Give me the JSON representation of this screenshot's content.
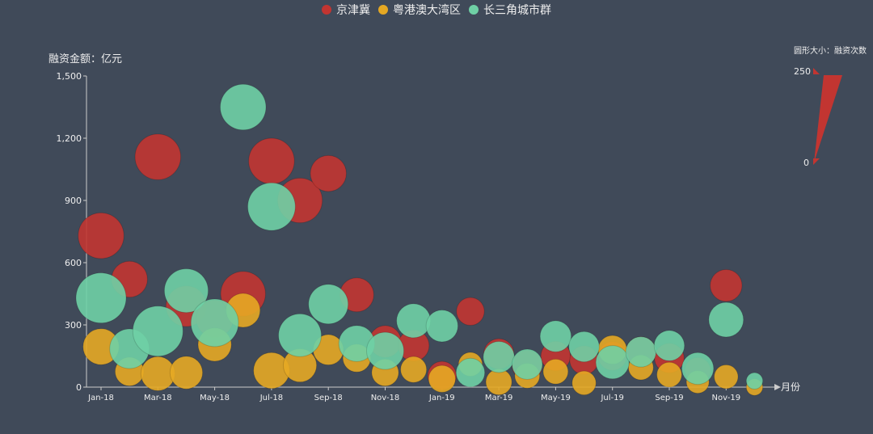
{
  "chart_data": {
    "type": "scatter",
    "title": "",
    "ylabel": "融资金额：亿元",
    "xlabel": "月份",
    "ylim": [
      0,
      1500
    ],
    "yticks": [
      "0",
      "300",
      "600",
      "900",
      "1,200",
      "1,500"
    ],
    "xticks": [
      "Jan-18",
      "Mar-18",
      "May-18",
      "Jul-18",
      "Sep-18",
      "Nov-18",
      "Jan-19",
      "Mar-19",
      "May-19",
      "Jul-19",
      "Sep-19",
      "Nov-19"
    ],
    "months": [
      "Jan-18",
      "Feb-18",
      "Mar-18",
      "Apr-18",
      "May-18",
      "Jun-18",
      "Jul-18",
      "Aug-18",
      "Sep-18",
      "Oct-18",
      "Nov-18",
      "Dec-18",
      "Jan-19",
      "Feb-19",
      "Mar-19",
      "Apr-19",
      "May-19",
      "Jun-19",
      "Jul-19",
      "Aug-19",
      "Sep-19",
      "Oct-19",
      "Nov-19",
      "Dec-19"
    ],
    "legend_position": "top-center",
    "size_legend": {
      "title": "圆形大小：融资次数",
      "max_label": "250",
      "min_label": "0",
      "color": "#c23531"
    },
    "series": [
      {
        "name": "京津冀",
        "color": "#c23531",
        "y": [
          730,
          520,
          1110,
          390,
          330,
          450,
          1090,
          900,
          1030,
          445,
          220,
          200,
          55,
          365,
          160,
          105,
          150,
          130,
          150,
          170,
          140,
          80,
          490,
          null
        ],
        "size": [
          200,
          110,
          200,
          150,
          120,
          190,
          200,
          190,
          110,
          95,
          80,
          75,
          60,
          55,
          70,
          70,
          65,
          60,
          60,
          70,
          65,
          45,
          80,
          null
        ]
      },
      {
        "name": "粤港澳大湾区",
        "color": "#e5a823",
        "y": [
          195,
          75,
          65,
          70,
          205,
          370,
          80,
          105,
          180,
          140,
          70,
          85,
          40,
          110,
          25,
          55,
          75,
          20,
          180,
          95,
          60,
          25,
          50,
          0
        ],
        "size": [
          110,
          60,
          95,
          85,
          90,
          95,
          110,
          90,
          70,
          55,
          50,
          45,
          50,
          35,
          45,
          40,
          40,
          35,
          60,
          40,
          40,
          30,
          35,
          10
        ]
      },
      {
        "name": "长三角城市群",
        "color": "#6fd0a5",
        "y": [
          430,
          185,
          270,
          465,
          310,
          1350,
          870,
          250,
          400,
          210,
          175,
          320,
          295,
          70,
          145,
          110,
          245,
          195,
          120,
          170,
          200,
          90,
          325,
          30
        ],
        "size": [
          250,
          140,
          250,
          180,
          220,
          200,
          220,
          170,
          140,
          110,
          120,
          95,
          80,
          60,
          75,
          70,
          75,
          70,
          90,
          70,
          70,
          80,
          100,
          10
        ]
      }
    ]
  }
}
